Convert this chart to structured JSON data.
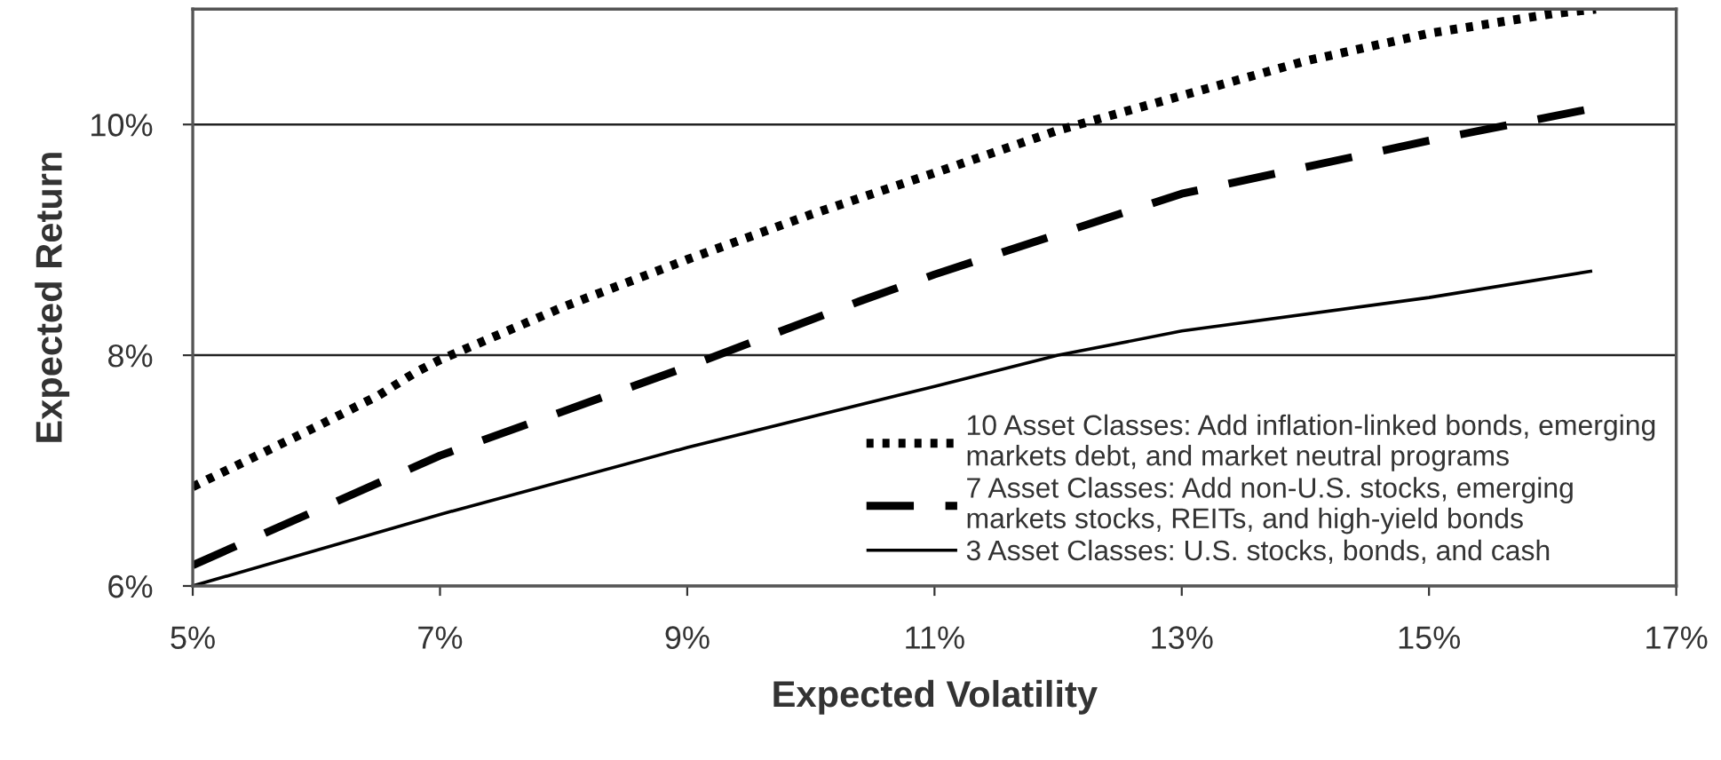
{
  "chart_data": {
    "type": "line",
    "xlabel": "Expected Volatility",
    "ylabel": "Expected Return",
    "xlim": [
      5,
      17
    ],
    "ylim": [
      6,
      11
    ],
    "xticks": [
      {
        "value": 5,
        "label": "5%"
      },
      {
        "value": 7,
        "label": "7%"
      },
      {
        "value": 9,
        "label": "9%"
      },
      {
        "value": 11,
        "label": "11%"
      },
      {
        "value": 13,
        "label": "13%"
      },
      {
        "value": 15,
        "label": "15%"
      },
      {
        "value": 17,
        "label": "17%"
      }
    ],
    "yticks": [
      {
        "value": 6,
        "label": "6%"
      },
      {
        "value": 8,
        "label": "8%"
      },
      {
        "value": 10,
        "label": "10%"
      }
    ],
    "grid": "y",
    "legend": "bottom right",
    "marker": "none",
    "series": [
      {
        "name": "10 Asset Classes: Add inflation-linked bonds, emerging\nmarkets debt, and market neutral programs",
        "color": "#000000",
        "line_style": "dotted",
        "x": [
          5,
          5.5,
          6,
          6.5,
          6.8,
          7,
          8,
          9,
          10,
          11,
          12,
          13,
          14,
          15,
          16,
          16.35
        ],
        "values": [
          6.86,
          7.12,
          7.38,
          7.65,
          7.85,
          7.96,
          8.42,
          8.83,
          9.22,
          9.58,
          9.95,
          10.25,
          10.55,
          10.79,
          10.96,
          11.0
        ]
      },
      {
        "name": "7 Asset Classes: Add non-U.S. stocks, emerging\nmarkets stocks, REITs, and high-yield bonds",
        "color": "#000000",
        "line_style": "dashed",
        "x": [
          5,
          7,
          9,
          10.4,
          11,
          13,
          15,
          16.28
        ],
        "values": [
          6.18,
          7.13,
          7.9,
          8.47,
          8.7,
          9.4,
          9.86,
          10.13
        ]
      },
      {
        "name": "3 Asset Classes: U.S. stocks, bonds, and cash",
        "color": "#000000",
        "line_style": "solid",
        "x": [
          5,
          7,
          9,
          11,
          12,
          13,
          15,
          16.32
        ],
        "values": [
          6.0,
          6.62,
          7.2,
          7.73,
          8.0,
          8.21,
          8.5,
          8.73
        ]
      }
    ]
  }
}
